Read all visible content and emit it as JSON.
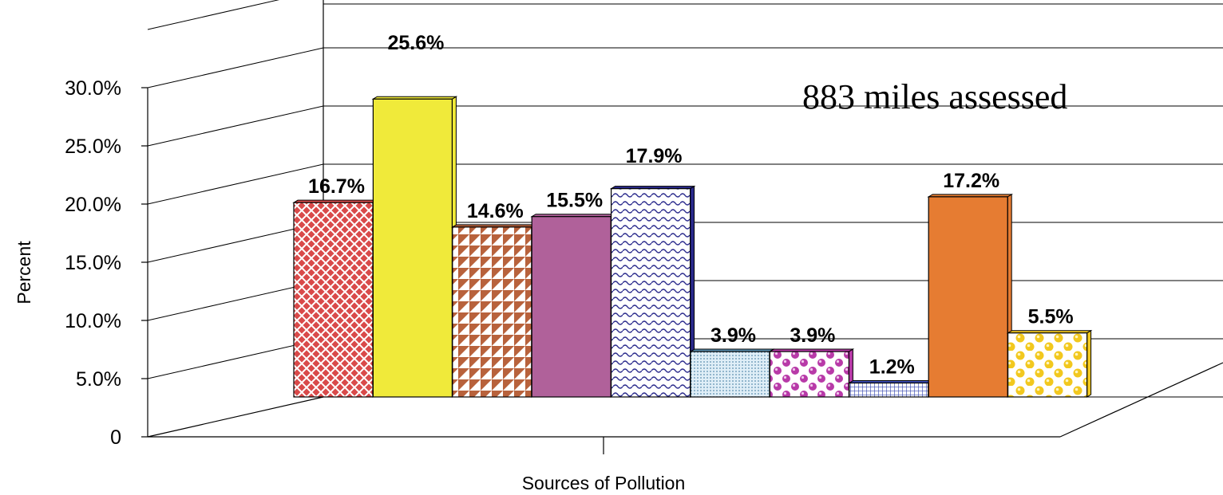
{
  "chart_data": {
    "type": "bar",
    "title": "",
    "xlabel": "Sources of Pollution",
    "ylabel": "Percent",
    "ylim": [
      0,
      30
    ],
    "y_ticks": [
      "0",
      "5.0%",
      "10.0%",
      "15.0%",
      "20.0%",
      "25.0%",
      "30.0%"
    ],
    "y_tick_values": [
      0,
      5,
      10,
      15,
      20,
      25,
      30
    ],
    "grid": true,
    "legend": "none",
    "three_d": true,
    "annotation": "883 miles assessed",
    "bars": [
      {
        "value": 16.7,
        "label": "16.7%",
        "color": "#d94a4a",
        "pattern": "weave"
      },
      {
        "value": 25.6,
        "label": "25.6%",
        "color": "#f0ea3a",
        "pattern": "solid"
      },
      {
        "value": 14.6,
        "label": "14.6%",
        "color": "#b8623c",
        "pattern": "triangles"
      },
      {
        "value": 15.5,
        "label": "15.5%",
        "color": "#b0619a",
        "pattern": "solid"
      },
      {
        "value": 17.9,
        "label": "17.9%",
        "color": "#2a2a8c",
        "pattern": "waves"
      },
      {
        "value": 3.9,
        "label": "3.9%",
        "color": "#5a8fb0",
        "pattern": "dots"
      },
      {
        "value": 3.9,
        "label": "3.9%",
        "color": "#b83aa8",
        "pattern": "spheres"
      },
      {
        "value": 1.2,
        "label": "1.2%",
        "color": "#3a4ab0",
        "pattern": "grid"
      },
      {
        "value": 17.2,
        "label": "17.2%",
        "color": "#e67c32",
        "pattern": "solid"
      },
      {
        "value": 5.5,
        "label": "5.5%",
        "color": "#f2c81e",
        "pattern": "balls"
      }
    ]
  }
}
